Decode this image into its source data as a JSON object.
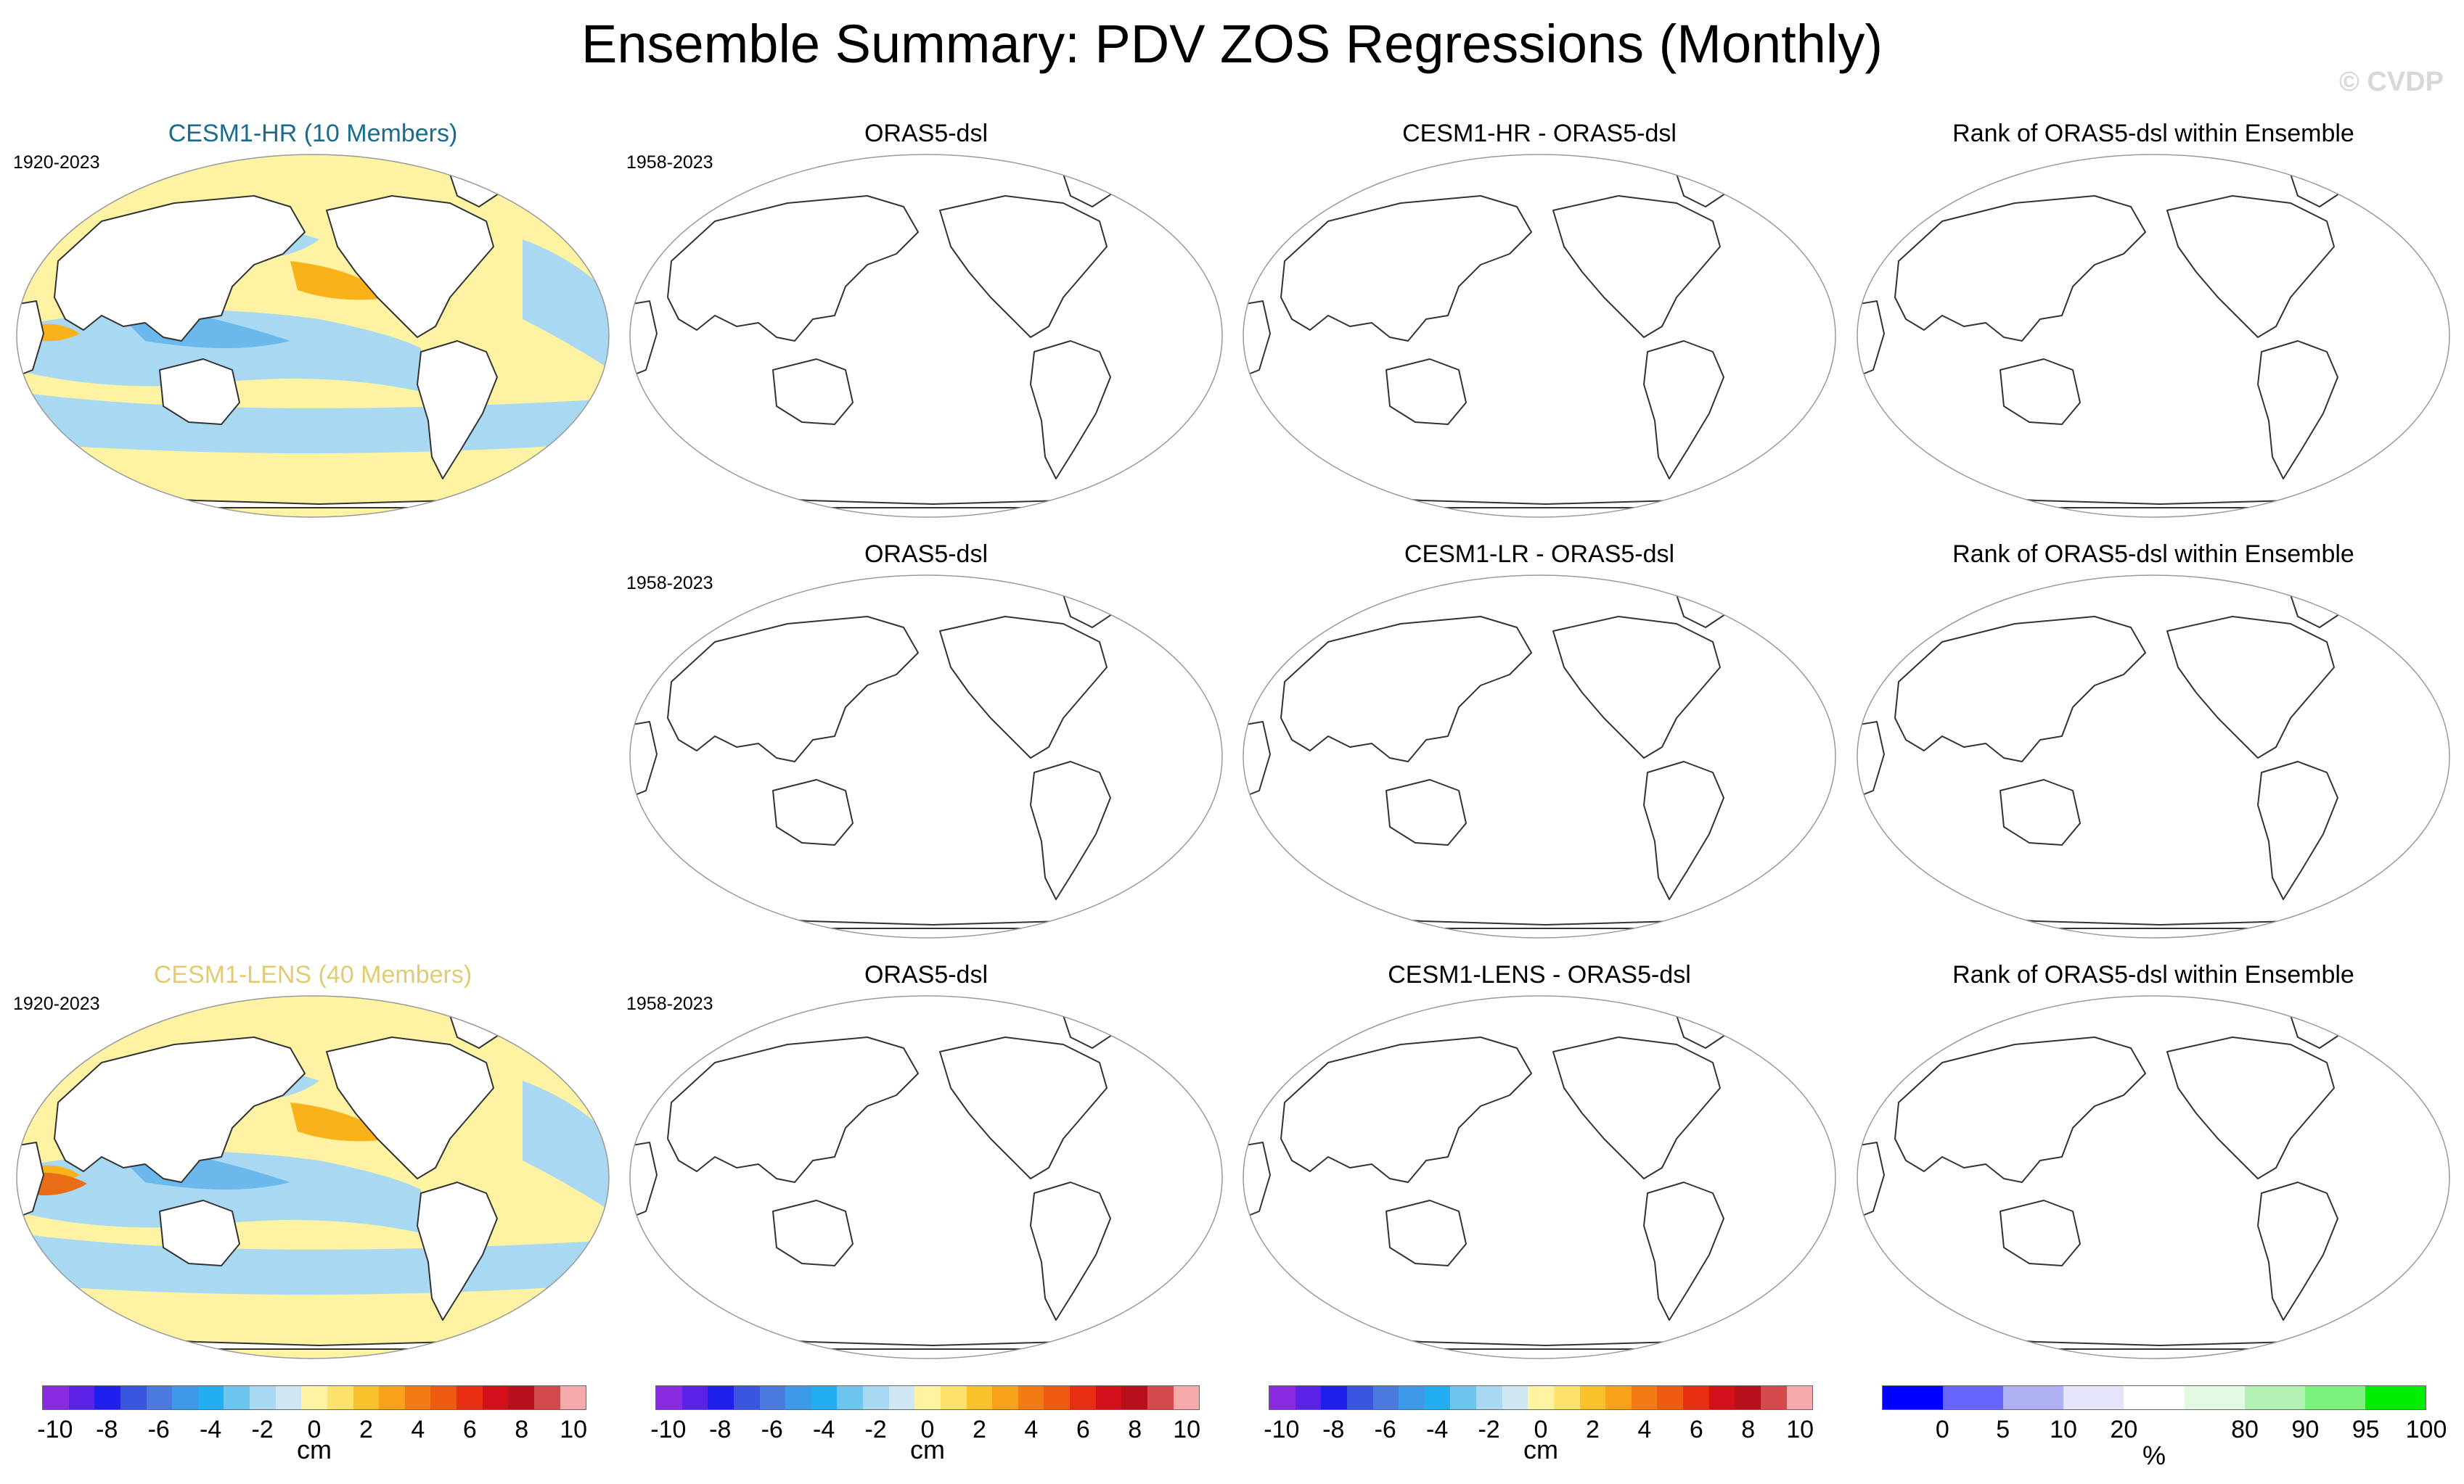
{
  "title": "Ensemble Summary: PDV ZOS Regressions (Monthly)",
  "watermark": "© CVDP",
  "colors": {
    "hr_title": "#1b6b8c",
    "lens_title": "#e0cc73",
    "yellow": "#fdf3a3",
    "orange": "#f9b21a",
    "dark_orange": "#e96d17",
    "light_blue": "#a9d8f2",
    "mid_blue": "#6ab8ec",
    "deep_blue": "#1388e6",
    "land": "#ffffff",
    "coast": "#333333"
  },
  "rows": [
    {
      "panels": [
        {
          "title": "CESM1-HR (10 Members)",
          "period": "1920-2023",
          "filled": true,
          "title_color": "hr_title"
        },
        {
          "title": "ORAS5-dsl",
          "period": "1958-2023",
          "filled": false
        },
        {
          "title": "CESM1-HR - ORAS5-dsl",
          "period": "",
          "filled": false
        },
        {
          "title": "Rank of ORAS5-dsl within Ensemble",
          "period": "",
          "filled": false
        }
      ]
    },
    {
      "panels": [
        {
          "title": "",
          "period": "",
          "filled": false,
          "empty": true
        },
        {
          "title": "ORAS5-dsl",
          "period": "1958-2023",
          "filled": false
        },
        {
          "title": "CESM1-LR - ORAS5-dsl",
          "period": "",
          "filled": false
        },
        {
          "title": "Rank of ORAS5-dsl within Ensemble",
          "period": "",
          "filled": false
        }
      ]
    },
    {
      "panels": [
        {
          "title": "CESM1-LENS (40 Members)",
          "period": "1920-2023",
          "filled": true,
          "title_color": "lens_title"
        },
        {
          "title": "ORAS5-dsl",
          "period": "1958-2023",
          "filled": false
        },
        {
          "title": "CESM1-LENS - ORAS5-dsl",
          "period": "",
          "filled": false
        },
        {
          "title": "Rank of ORAS5-dsl within Ensemble",
          "period": "",
          "filled": false
        }
      ]
    }
  ],
  "colorbars": [
    {
      "unit": "cm",
      "labels": [
        "-10",
        "-8",
        "-6",
        "-4",
        "-2",
        "0",
        "2",
        "4",
        "6",
        "8",
        "10"
      ],
      "colors": [
        "#8a2be2",
        "#5a22e6",
        "#2020ee",
        "#3a55e0",
        "#4a7ae0",
        "#3c9ae8",
        "#22aef0",
        "#6cc6f0",
        "#a9d8f2",
        "#cfe6f3",
        "#fdf3a3",
        "#fde36a",
        "#f9c22a",
        "#f7a21a",
        "#f47a14",
        "#ef5a12",
        "#e82e10",
        "#d6101a",
        "#b80f1a",
        "#d44a4a",
        "#f4aaaa"
      ]
    },
    {
      "unit": "cm",
      "labels": [
        "-10",
        "-8",
        "-6",
        "-4",
        "-2",
        "0",
        "2",
        "4",
        "6",
        "8",
        "10"
      ],
      "colors": [
        "#8a2be2",
        "#5a22e6",
        "#2020ee",
        "#3a55e0",
        "#4a7ae0",
        "#3c9ae8",
        "#22aef0",
        "#6cc6f0",
        "#a9d8f2",
        "#cfe6f3",
        "#fdf3a3",
        "#fde36a",
        "#f9c22a",
        "#f7a21a",
        "#f47a14",
        "#ef5a12",
        "#e82e10",
        "#d6101a",
        "#b80f1a",
        "#d44a4a",
        "#f4aaaa"
      ]
    },
    {
      "unit": "cm",
      "labels": [
        "-10",
        "-8",
        "-6",
        "-4",
        "-2",
        "0",
        "2",
        "4",
        "6",
        "8",
        "10"
      ],
      "colors": [
        "#8a2be2",
        "#5a22e6",
        "#2020ee",
        "#3a55e0",
        "#4a7ae0",
        "#3c9ae8",
        "#22aef0",
        "#6cc6f0",
        "#a9d8f2",
        "#cfe6f3",
        "#fdf3a3",
        "#fde36a",
        "#f9c22a",
        "#f7a21a",
        "#f47a14",
        "#ef5a12",
        "#e82e10",
        "#d6101a",
        "#b80f1a",
        "#d44a4a",
        "#f4aaaa"
      ]
    },
    {
      "unit": "%",
      "labels": [
        "0",
        "5",
        "10",
        "20",
        "80",
        "90",
        "95",
        "100"
      ],
      "colors": [
        "#0000ff",
        "#6666ff",
        "#b0b0f5",
        "#e4e4fa",
        "#ffffff",
        "#e2fae2",
        "#b4f0b4",
        "#7cf27c",
        "#00ee00"
      ]
    }
  ]
}
